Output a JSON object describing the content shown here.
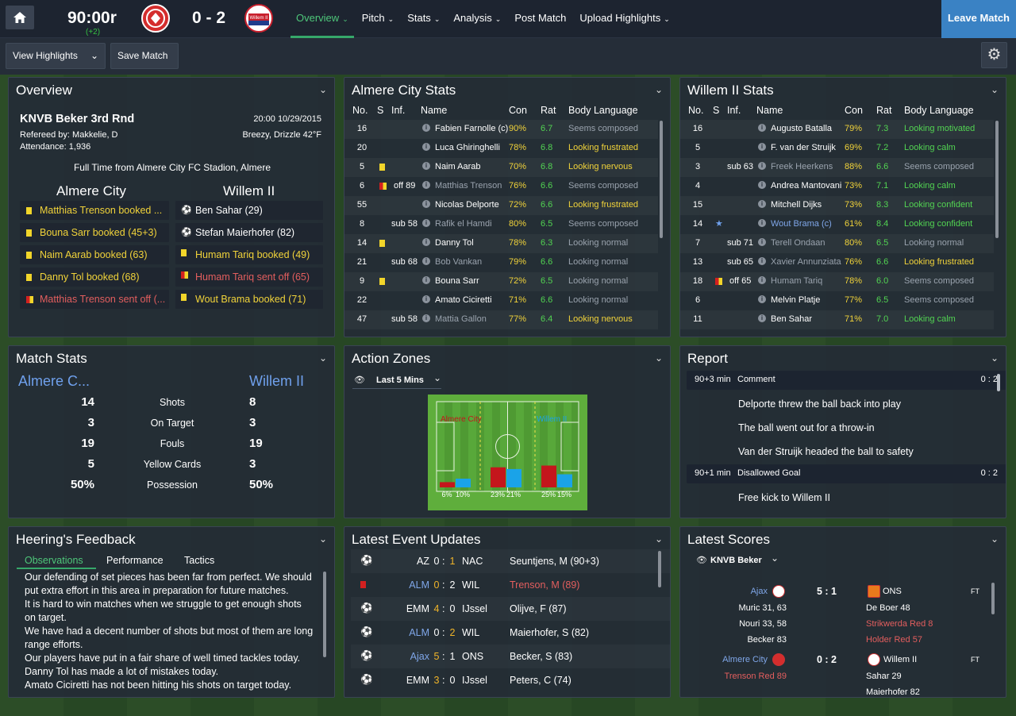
{
  "topbar": {
    "clock": "90:00r",
    "added": "(+2)",
    "score": "0 - 2",
    "leave": "Leave Match",
    "nav": [
      {
        "label": "Overview",
        "chev": "⌄"
      },
      {
        "label": "Pitch",
        "chev": "⌄"
      },
      {
        "label": "Stats",
        "chev": "⌄"
      },
      {
        "label": "Analysis",
        "chev": "⌄"
      },
      {
        "label": "Post Match",
        "chev": ""
      },
      {
        "label": "Upload Highlights",
        "chev": "⌄"
      }
    ],
    "home_crest": {
      "icon": "almere-city-crest",
      "color": "#d42d2d"
    },
    "away_crest": {
      "icon": "willem-ii-crest",
      "text": "Willem II",
      "color": "#c8202d"
    }
  },
  "subbar": {
    "view_highlights": "View Highlights",
    "save_match": "Save Match",
    "gear_icon": "gear-icon"
  },
  "overview": {
    "title": "Overview",
    "competition": "KNVB Beker 3rd Rnd",
    "datetime": "20:00 10/29/2015",
    "referee": "Refereed by: Makkelie, D",
    "weather": "Breezy, Drizzle 42°F",
    "attendance": "Attendance: 1,936",
    "fulltime": "Full Time from Almere City FC Stadion, Almere",
    "home": "Almere City",
    "away": "Willem II",
    "home_events": [
      {
        "card": "yellow",
        "text": "Matthias Trenson booked ...",
        "color": "yel"
      },
      {
        "card": "yellow",
        "text": "Bouna Sarr booked (45+3)",
        "color": "yel"
      },
      {
        "card": "yellow",
        "text": "Naim Aarab booked (63)",
        "color": "yel"
      },
      {
        "card": "yellow",
        "text": "Danny Tol booked (68)",
        "color": "yel"
      },
      {
        "card": "yellowred",
        "text": "Matthias Trenson sent off (...",
        "color": "red"
      }
    ],
    "away_events": [
      {
        "card": "goal",
        "text": "Ben Sahar (29)",
        "color": "wht"
      },
      {
        "card": "goal",
        "text": "Stefan Maierhofer (82)",
        "color": "wht"
      },
      {
        "card": "yellow",
        "text": "Humam Tariq booked (49)",
        "color": "yel"
      },
      {
        "card": "yellowred",
        "text": "Humam Tariq sent off (65)",
        "color": "red"
      },
      {
        "card": "yellow",
        "text": "Wout Brama booked (71)",
        "color": "yel"
      }
    ]
  },
  "almere_stats": {
    "title": "Almere City Stats",
    "headers": {
      "no": "No.",
      "s": "S",
      "inf": "Inf.",
      "name": "Name",
      "con": "Con",
      "rat": "Rat",
      "body": "Body Language"
    },
    "rows": [
      {
        "no": "16",
        "s": "",
        "inf": "",
        "name": "Fabien Farnolle (c)",
        "con": "90%",
        "rat": "6.7",
        "body": "Seems composed",
        "bc": "gry",
        "sub": false
      },
      {
        "no": "20",
        "s": "",
        "inf": "",
        "name": "Luca Ghiringhelli",
        "con": "78%",
        "rat": "6.8",
        "body": "Looking frustrated",
        "bc": "yel",
        "sub": false
      },
      {
        "no": "5",
        "s": "yellow",
        "inf": "",
        "name": "Naim Aarab",
        "con": "70%",
        "rat": "6.8",
        "body": "Looking nervous",
        "bc": "yel",
        "sub": false
      },
      {
        "no": "6",
        "s": "yellowred",
        "inf": "off 89",
        "name": "Matthias Trenson",
        "con": "76%",
        "rat": "6.6",
        "body": "Seems composed",
        "bc": "gry",
        "sub": true
      },
      {
        "no": "55",
        "s": "",
        "inf": "",
        "name": "Nicolas Delporte",
        "con": "72%",
        "rat": "6.6",
        "body": "Looking frustrated",
        "bc": "yel",
        "sub": false
      },
      {
        "no": "8",
        "s": "",
        "inf": "sub 58",
        "name": "Rafik el Hamdi",
        "con": "80%",
        "rat": "6.5",
        "body": "Seems composed",
        "bc": "gry",
        "sub": true
      },
      {
        "no": "14",
        "s": "yellow",
        "inf": "",
        "name": "Danny Tol",
        "con": "78%",
        "rat": "6.3",
        "body": "Looking normal",
        "bc": "gry",
        "sub": false
      },
      {
        "no": "21",
        "s": "",
        "inf": "sub 68",
        "name": "Bob Vankan",
        "con": "79%",
        "rat": "6.6",
        "body": "Looking normal",
        "bc": "gry",
        "sub": true
      },
      {
        "no": "9",
        "s": "yellow",
        "inf": "",
        "name": "Bouna Sarr",
        "con": "72%",
        "rat": "6.5",
        "body": "Looking normal",
        "bc": "gry",
        "sub": false
      },
      {
        "no": "22",
        "s": "",
        "inf": "",
        "name": "Amato Ciciretti",
        "con": "71%",
        "rat": "6.6",
        "body": "Looking normal",
        "bc": "gry",
        "sub": false
      },
      {
        "no": "47",
        "s": "",
        "inf": "sub 58",
        "name": "Mattia Gallon",
        "con": "77%",
        "rat": "6.4",
        "body": "Looking nervous",
        "bc": "yel",
        "sub": true
      }
    ]
  },
  "willem_stats": {
    "title": "Willem II Stats",
    "headers": {
      "no": "No.",
      "s": "S",
      "inf": "Inf.",
      "name": "Name",
      "con": "Con",
      "rat": "Rat",
      "body": "Body Language"
    },
    "rows": [
      {
        "no": "16",
        "s": "",
        "inf": "",
        "name": "Augusto Batalla",
        "con": "79%",
        "rat": "7.3",
        "body": "Looking motivated",
        "bc": "grn",
        "sub": false
      },
      {
        "no": "5",
        "s": "",
        "inf": "",
        "name": "F. van der Struijk",
        "con": "69%",
        "rat": "7.2",
        "body": "Looking calm",
        "bc": "grn",
        "sub": false
      },
      {
        "no": "3",
        "s": "",
        "inf": "sub 63",
        "name": "Freek Heerkens",
        "con": "88%",
        "rat": "6.6",
        "body": "Seems composed",
        "bc": "gry",
        "sub": true
      },
      {
        "no": "4",
        "s": "",
        "inf": "",
        "name": "Andrea Mantovani",
        "con": "73%",
        "rat": "7.1",
        "body": "Looking calm",
        "bc": "grn",
        "sub": false
      },
      {
        "no": "15",
        "s": "",
        "inf": "",
        "name": "Mitchell Dijks",
        "con": "73%",
        "rat": "8.3",
        "body": "Looking confident",
        "bc": "grn",
        "sub": false
      },
      {
        "no": "14",
        "s": "star",
        "inf": "",
        "name": "Wout Brama (c)",
        "con": "61%",
        "rat": "8.4",
        "body": "Looking confident",
        "bc": "grn",
        "sub": false,
        "blue": true
      },
      {
        "no": "7",
        "s": "",
        "inf": "sub 71",
        "name": "Terell Ondaan",
        "con": "80%",
        "rat": "6.5",
        "body": "Looking normal",
        "bc": "gry",
        "sub": true
      },
      {
        "no": "13",
        "s": "",
        "inf": "sub 65",
        "name": "Xavier Annunziata",
        "con": "76%",
        "rat": "6.6",
        "body": "Looking frustrated",
        "bc": "yel",
        "sub": true
      },
      {
        "no": "18",
        "s": "yellowred",
        "inf": "off 65",
        "name": "Humam Tariq",
        "con": "78%",
        "rat": "6.0",
        "body": "Seems composed",
        "bc": "gry",
        "sub": true
      },
      {
        "no": "6",
        "s": "",
        "inf": "",
        "name": "Melvin Platje",
        "con": "77%",
        "rat": "6.5",
        "body": "Seems composed",
        "bc": "gry",
        "sub": false
      },
      {
        "no": "11",
        "s": "",
        "inf": "",
        "name": "Ben Sahar",
        "con": "71%",
        "rat": "7.0",
        "body": "Looking calm",
        "bc": "grn",
        "sub": false
      }
    ]
  },
  "match_stats": {
    "title": "Match Stats",
    "home": "Almere C...",
    "away": "Willem II",
    "rows": [
      {
        "h": "14",
        "label": "Shots",
        "a": "8"
      },
      {
        "h": "3",
        "label": "On Target",
        "a": "3"
      },
      {
        "h": "19",
        "label": "Fouls",
        "a": "19"
      },
      {
        "h": "5",
        "label": "Yellow Cards",
        "a": "3"
      },
      {
        "h": "50%",
        "label": "Possession",
        "a": "50%"
      }
    ]
  },
  "action_zones": {
    "title": "Action Zones",
    "filter": "Last 5 Mins",
    "home": "Almere City",
    "away": "Willem II",
    "zones": [
      {
        "home": 6,
        "away": 10,
        "home_label": "6%",
        "away_label": "10%"
      },
      {
        "home": 23,
        "away": 21,
        "home_label": "23%",
        "away_label": "21%"
      },
      {
        "home": 25,
        "away": 15,
        "home_label": "25%",
        "away_label": "15%"
      }
    ],
    "home_color": "#c4161c",
    "away_color": "#1aa3e8"
  },
  "report": {
    "title": "Report",
    "items": [
      {
        "type": "header",
        "min": "90+3 min",
        "label": "Comment",
        "score": "0 : 2"
      },
      {
        "type": "text",
        "text": "Delporte threw the ball back into play"
      },
      {
        "type": "text",
        "text": "The ball went out for a throw-in"
      },
      {
        "type": "text",
        "text": "Van der Struijk headed the ball to safety"
      },
      {
        "type": "header",
        "min": "90+1 min",
        "label": "Disallowed Goal",
        "score": "0 : 2"
      },
      {
        "type": "text",
        "text": "Free kick to Willem II"
      }
    ]
  },
  "feedback": {
    "title": "Heering's Feedback",
    "tabs": [
      "Observations",
      "Performance",
      "Tactics"
    ],
    "lines": [
      "Our defending of set pieces has been far from perfect. We should",
      "put extra effort in this area in preparation for future matches.",
      "It is hard to win matches when we struggle to get enough shots",
      "on target.",
      "We have had a decent number of shots but most of them are long",
      "range efforts.",
      "Our players have put in a fair share of well timed tackles today.",
      "Danny Tol has made a lot of mistakes today.",
      "Amato Ciciretti has not been hitting his shots on target today."
    ]
  },
  "events": {
    "title": "Latest Event Updates",
    "rows": [
      {
        "icon": "goal",
        "home": "AZ",
        "hs": "0",
        "as": "1",
        "away": "NAC",
        "desc": "Seuntjens, M (90+3)",
        "hc": "wht",
        "hsc": "wht",
        "asc": "orn",
        "dc": "wht"
      },
      {
        "icon": "red",
        "home": "ALM",
        "hs": "0",
        "as": "2",
        "away": "WIL",
        "desc": "Trenson, M (89)",
        "hc": "blu",
        "hsc": "orn",
        "asc": "wht",
        "dc": "red"
      },
      {
        "icon": "goal",
        "home": "EMM",
        "hs": "4",
        "as": "0",
        "away": "IJssel",
        "desc": "Olijve, F (87)",
        "hc": "wht",
        "hsc": "orn",
        "asc": "wht",
        "dc": "wht"
      },
      {
        "icon": "goal",
        "home": "ALM",
        "hs": "0",
        "as": "2",
        "away": "WIL",
        "desc": "Maierhofer, S (82)",
        "hc": "blu",
        "hsc": "wht",
        "asc": "orn",
        "dc": "wht"
      },
      {
        "icon": "goal",
        "home": "Ajax",
        "hs": "5",
        "as": "1",
        "away": "ONS",
        "desc": "Becker, S (83)",
        "hc": "blu",
        "hsc": "orn",
        "asc": "wht",
        "dc": "wht"
      },
      {
        "icon": "goal",
        "home": "EMM",
        "hs": "3",
        "as": "0",
        "away": "IJssel",
        "desc": "Peters, C (74)",
        "hc": "wht",
        "hsc": "orn",
        "asc": "wht",
        "dc": "wht"
      }
    ]
  },
  "scores": {
    "title": "Latest Scores",
    "filter": "KNVB Beker",
    "matches": [
      {
        "home": "Ajax",
        "score": "5 : 1",
        "away": "ONS",
        "status": "FT",
        "home_scorers": [
          {
            "t": "Muric 31, 63",
            "c": "wht"
          },
          {
            "t": "Nouri 33, 58",
            "c": "wht"
          },
          {
            "t": "Becker 83",
            "c": "wht"
          }
        ],
        "away_scorers": [
          {
            "t": "De Boer 48",
            "c": "wht"
          },
          {
            "t": "Strikwerda Red 8",
            "c": "red"
          },
          {
            "t": "Holder Red 57",
            "c": "red"
          }
        ]
      },
      {
        "home": "Almere City",
        "score": "0 : 2",
        "away": "Willem II",
        "status": "FT",
        "home_scorers": [
          {
            "t": "Trenson Red 89",
            "c": "red"
          }
        ],
        "away_scorers": [
          {
            "t": "Sahar 29",
            "c": "wht"
          },
          {
            "t": "Maierhofer 82",
            "c": "wht"
          }
        ]
      }
    ]
  }
}
